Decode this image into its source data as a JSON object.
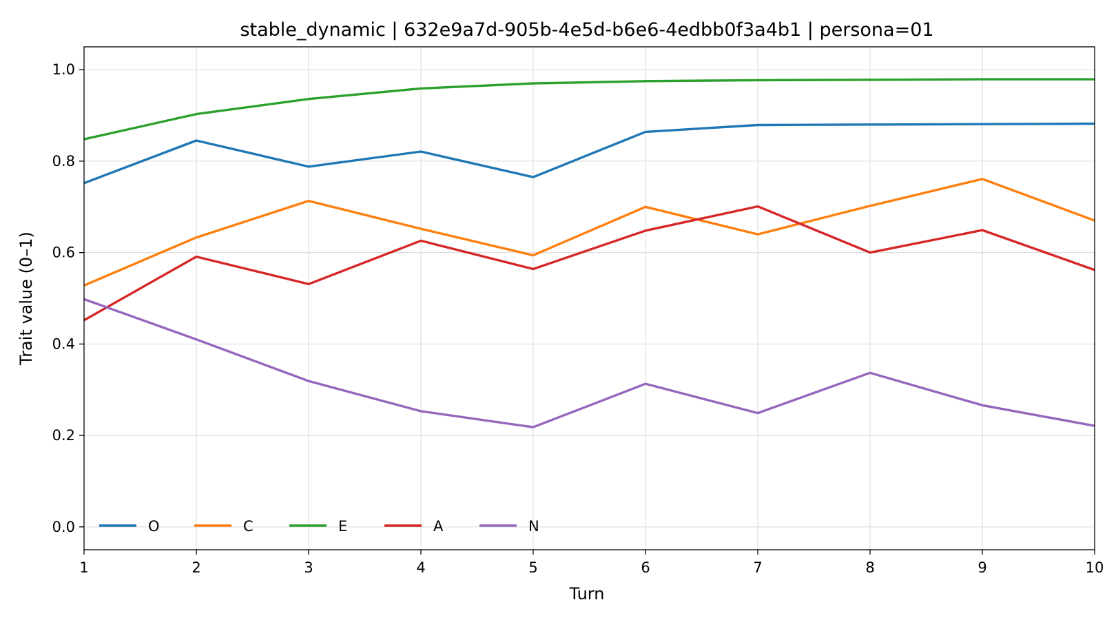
{
  "chart_data": {
    "type": "line",
    "title": "stable_dynamic | 632e9a7d-905b-4e5d-b6e6-4edbb0f3a4b1 | persona=01",
    "xlabel": "Turn",
    "ylabel": "Trait value (0–1)",
    "x": [
      1,
      2,
      3,
      4,
      5,
      6,
      7,
      8,
      9,
      10
    ],
    "xlim": [
      1,
      10
    ],
    "ylim": [
      -0.05,
      1.05
    ],
    "xticks": [
      "1",
      "2",
      "3",
      "4",
      "5",
      "6",
      "7",
      "8",
      "9",
      "10"
    ],
    "yticks": [
      "0.0",
      "0.2",
      "0.4",
      "0.6",
      "0.8",
      "1.0"
    ],
    "grid": true,
    "legend_position": "lower-left",
    "series": [
      {
        "name": "O",
        "color": "#1f77b4",
        "values": [
          0.752,
          0.845,
          0.788,
          0.821,
          0.765,
          0.864,
          0.879,
          0.88,
          0.881,
          0.882
        ]
      },
      {
        "name": "C",
        "color": "#ff7f0e",
        "values": [
          0.528,
          0.633,
          0.713,
          0.652,
          0.594,
          0.7,
          0.64,
          0.702,
          0.761,
          0.67
        ]
      },
      {
        "name": "E",
        "color": "#2ca02c",
        "values": [
          0.848,
          0.903,
          0.936,
          0.959,
          0.97,
          0.975,
          0.977,
          0.978,
          0.979,
          0.979
        ]
      },
      {
        "name": "A",
        "color": "#d62728",
        "values": [
          0.452,
          0.591,
          0.531,
          0.626,
          0.564,
          0.648,
          0.701,
          0.6,
          0.649,
          0.562
        ]
      },
      {
        "name": "N",
        "color": "#9467bd",
        "values": [
          0.498,
          0.41,
          0.319,
          0.253,
          0.218,
          0.313,
          0.249,
          0.337,
          0.266,
          0.221
        ]
      }
    ]
  }
}
